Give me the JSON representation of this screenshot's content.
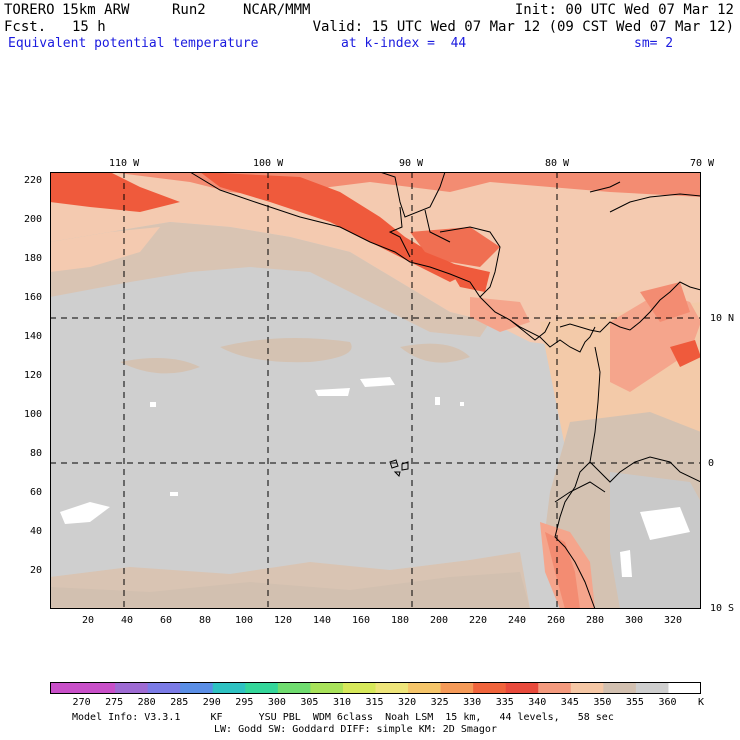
{
  "header": {
    "model": "TORERO",
    "res": "15km ARW",
    "run": "Run2",
    "org": "NCAR/MMM",
    "init": "Init: 00 UTC Wed 07 Mar 12",
    "fcst_label": "Fcst.",
    "fcst_value": "15 h",
    "valid": "Valid: 15 UTC Wed 07 Mar 12 (09 CST Wed 07 Mar 12)",
    "field": "Equivalent potential temperature",
    "level": "at k-index =  44",
    "smooth": "sm= 2"
  },
  "map": {
    "lon_labels": [
      "110 W",
      "100 W",
      "90 W",
      "80 W",
      "70 W"
    ],
    "lat_labels": [
      "10 N",
      "0",
      "10 S"
    ],
    "x_ticks": [
      "20",
      "40",
      "60",
      "80",
      "100",
      "120",
      "140",
      "160",
      "180",
      "200",
      "220",
      "240",
      "260",
      "280",
      "300",
      "320"
    ],
    "y_ticks": [
      "220",
      "200",
      "180",
      "160",
      "140",
      "120",
      "100",
      "80",
      "60",
      "40",
      "20"
    ],
    "x_range": [
      1,
      331
    ],
    "y_range": [
      1,
      222
    ]
  },
  "colorbar": {
    "labels": [
      "270",
      "275",
      "280",
      "285",
      "290",
      "295",
      "300",
      "305",
      "310",
      "315",
      "320",
      "325",
      "330",
      "335",
      "340",
      "345",
      "350",
      "355",
      "360"
    ],
    "unit": "K",
    "colors": [
      "#c84fc8",
      "#9e6bd3",
      "#7b7be6",
      "#5a8ee6",
      "#2ec2c2",
      "#34d69a",
      "#6fdc6f",
      "#a8e25a",
      "#d6e85a",
      "#eee57a",
      "#f5c56a",
      "#f59a58",
      "#f0643c",
      "#e84a3c",
      "#f49a7e",
      "#f5c7a5",
      "#d2c0b0",
      "#cfcfcf",
      "#ffffff"
    ]
  },
  "footer": {
    "line1": "Model Info: V3.3.1     KF      YSU PBL  WDM 6class  Noah LSM  15 km,   44 levels,   58 sec",
    "line2": "LW: Godd SW: Goddard DIFF: simple KM: 2D Smagor"
  }
}
